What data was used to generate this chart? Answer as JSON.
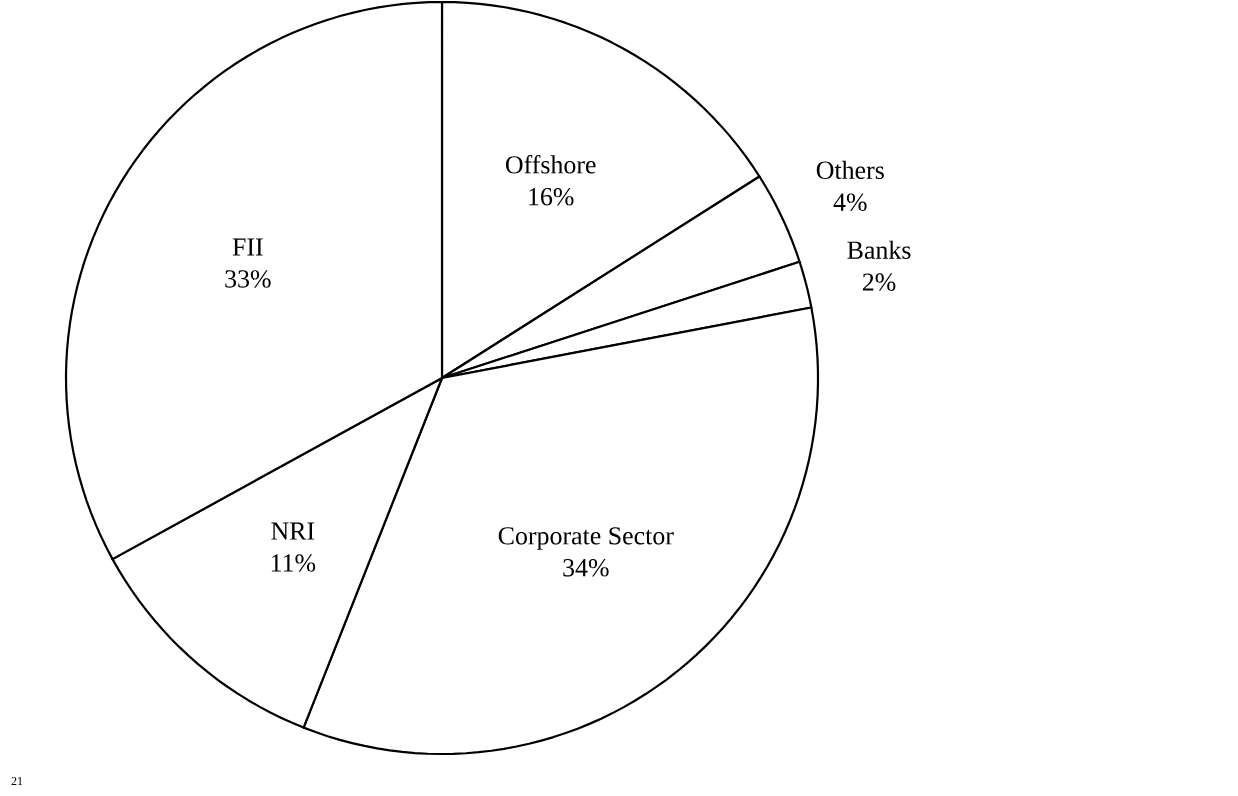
{
  "chart_data": {
    "type": "pie",
    "categories": [
      "Offshore",
      "Others",
      "Banks",
      "Corporate Sector",
      "NRI",
      "FII"
    ],
    "values": [
      16,
      4,
      2,
      34,
      11,
      33
    ],
    "value_labels": [
      "16%",
      "4%",
      "2%",
      "34%",
      "11%",
      "33%"
    ],
    "colors": [
      "#ffffff",
      "#ffffff",
      "#ffffff",
      "#ffffff",
      "#ffffff",
      "#ffffff"
    ],
    "annotations": [
      "21"
    ]
  }
}
